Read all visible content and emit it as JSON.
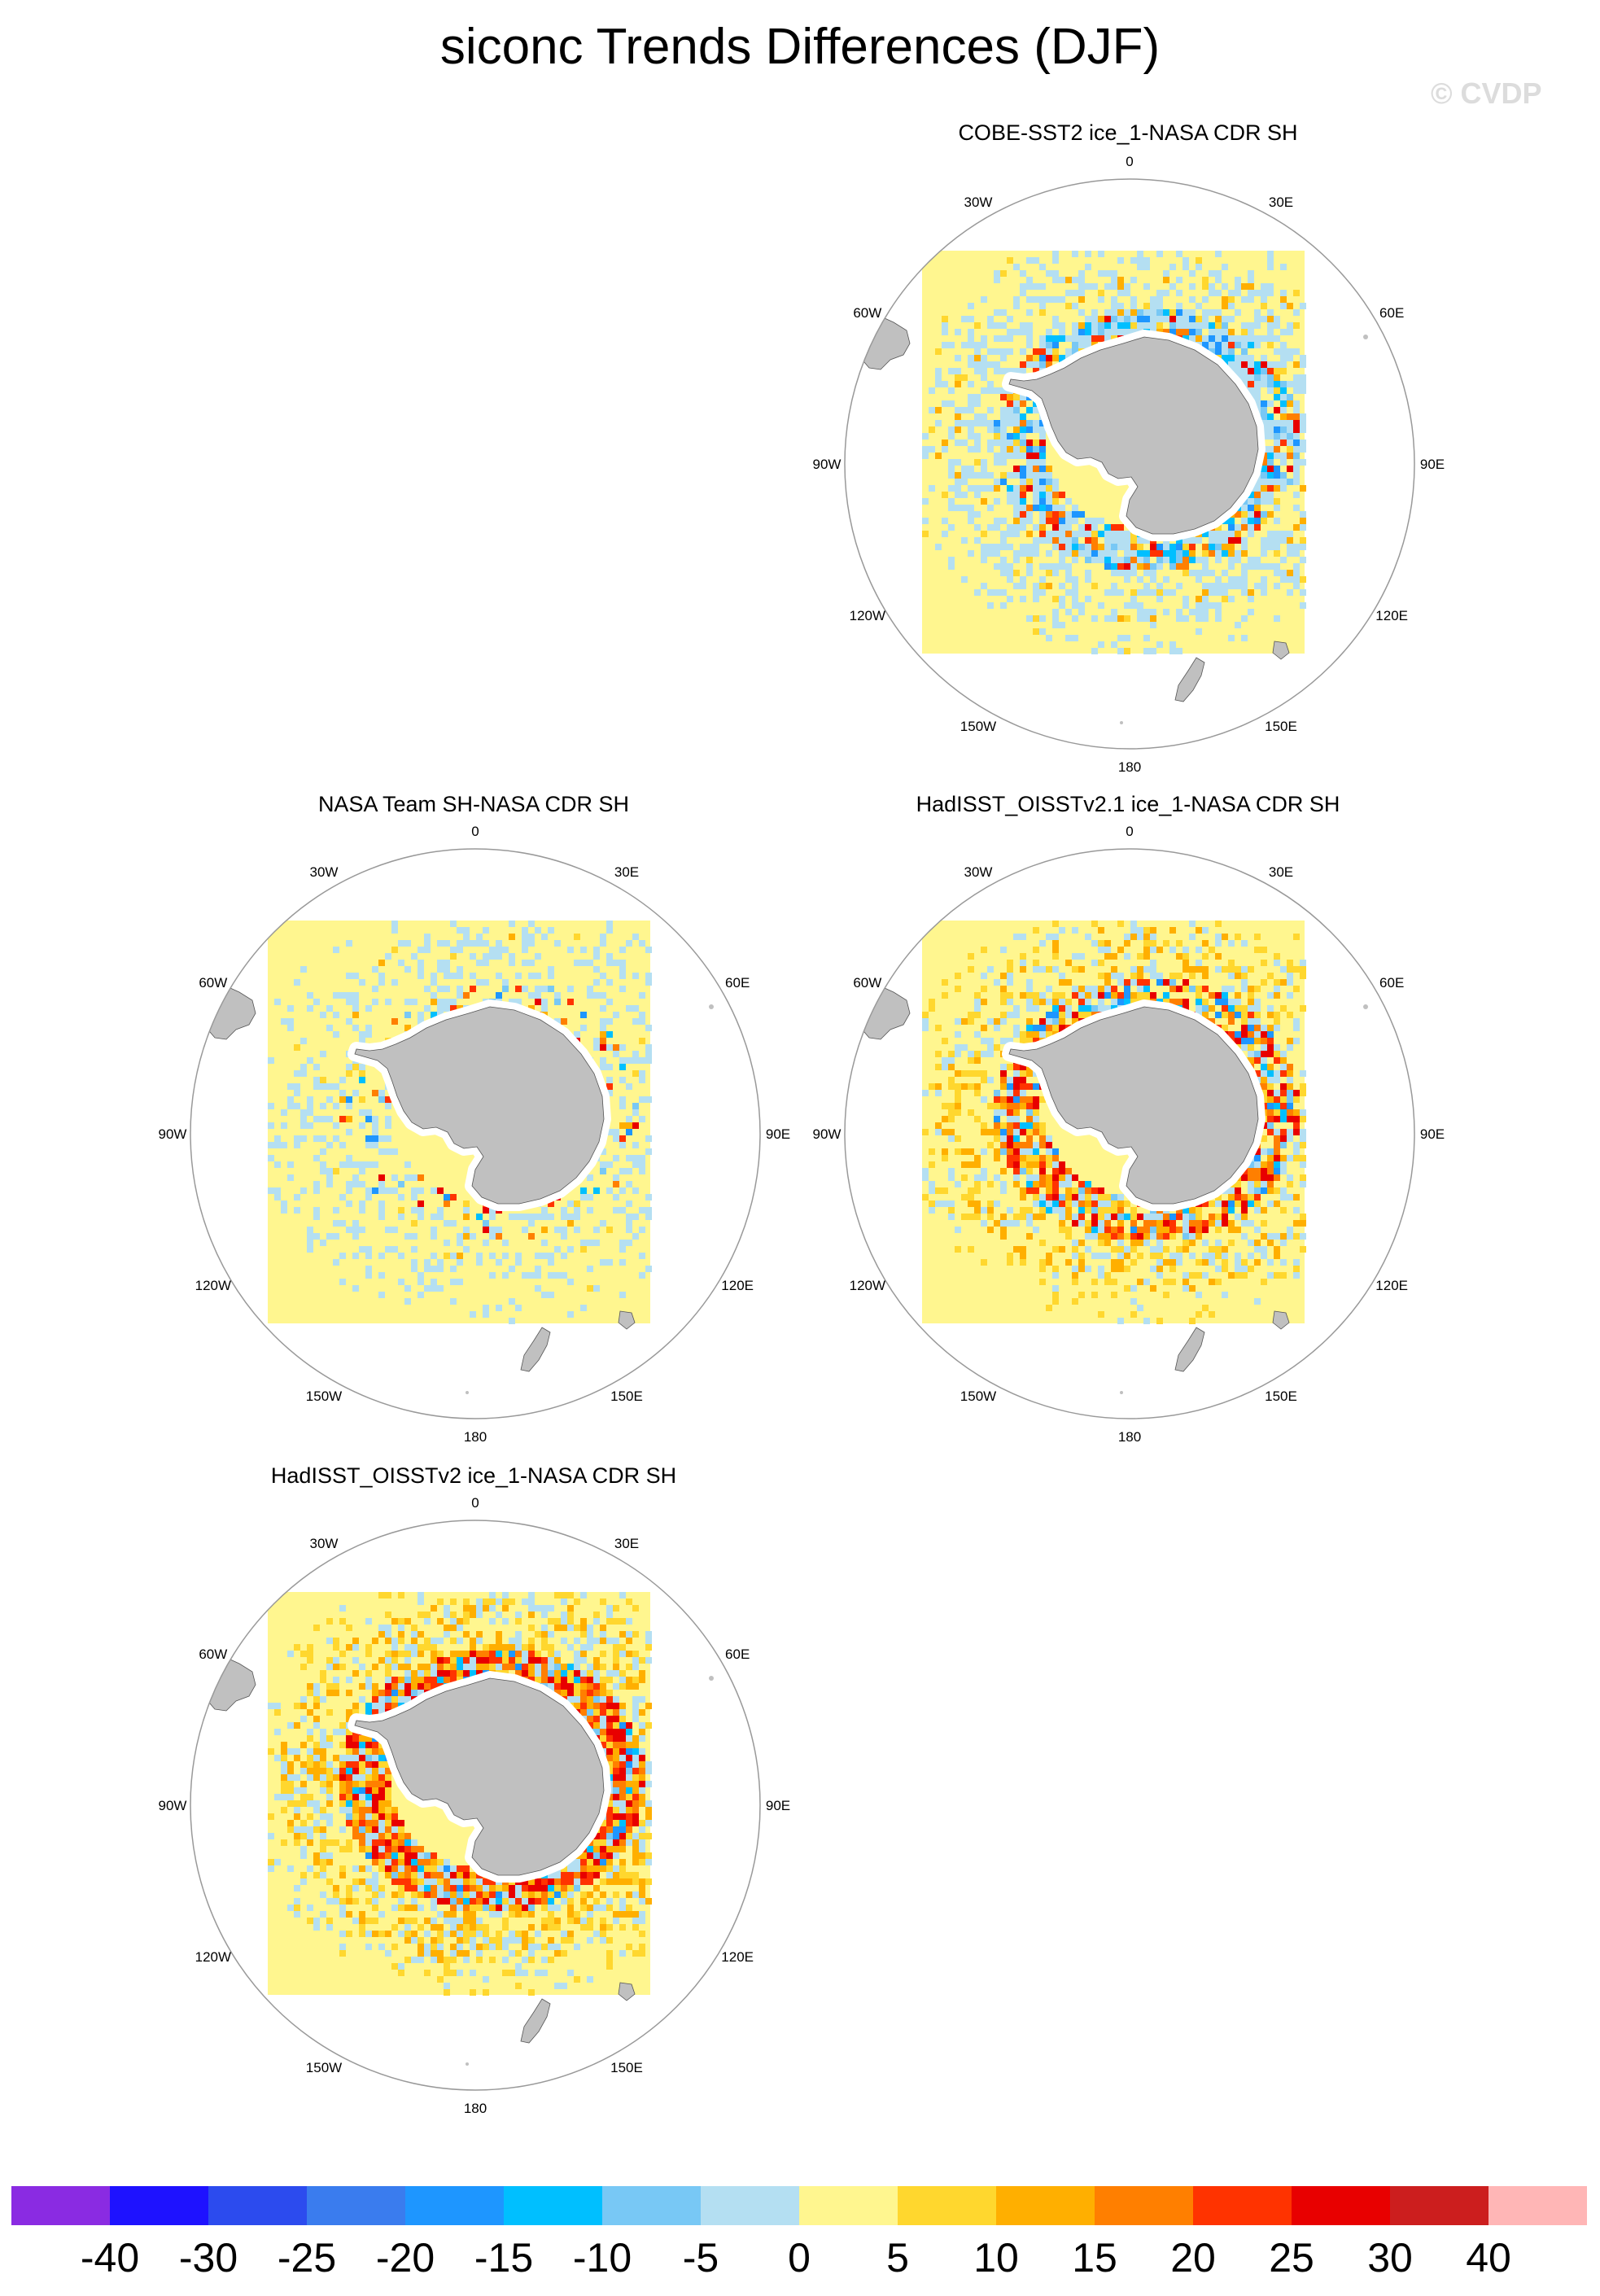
{
  "title": "siconc Trends Differences (DJF)",
  "watermark": "© CVDP",
  "panels": [
    {
      "id": "cobe",
      "title": "COBE-SST2 ice_1-NASA CDR SH",
      "pattern": "light-blue near coast, mixed red/blue at ice edge"
    },
    {
      "id": "nasateam",
      "title": "NASA Team SH-NASA CDR SH",
      "pattern": "mostly light blue patches"
    },
    {
      "id": "hadisst21",
      "title": "HadISST_OISSTv2.1 ice_1-NASA CDR SH",
      "pattern": "orange/red positive ring around Antarctica"
    },
    {
      "id": "hadisst2",
      "title": "HadISST_OISSTv2 ice_1-NASA CDR SH",
      "pattern": "strong orange/red positive ring around Antarctica"
    }
  ],
  "lon_labels": {
    "n0": "0",
    "n30e": "30E",
    "n60e": "60E",
    "n90e": "90E",
    "n120e": "120E",
    "n150e": "150E",
    "n180": "180",
    "n150w": "150W",
    "n120w": "120W",
    "n90w": "90W",
    "n60w": "60W",
    "n30w": "30W"
  },
  "colorbar": {
    "colors": [
      "#8a2be2",
      "#1e12ff",
      "#2c4bee",
      "#3a7cee",
      "#1e96ff",
      "#00bfff",
      "#78c8f5",
      "#b4dff2",
      "#fff68f",
      "#ffd72e",
      "#ffaf00",
      "#ff7f00",
      "#ff3300",
      "#e80000",
      "#cc1e1e",
      "#ffb6b6"
    ],
    "labels": [
      "-40",
      "-30",
      "-25",
      "-20",
      "-15",
      "-10",
      "-5",
      "0",
      "5",
      "10",
      "15",
      "20",
      "25",
      "30",
      "40"
    ]
  },
  "colors": {
    "land": "#c0c0c0",
    "ocean_fill": "#fff68f",
    "circle": "#999999"
  }
}
